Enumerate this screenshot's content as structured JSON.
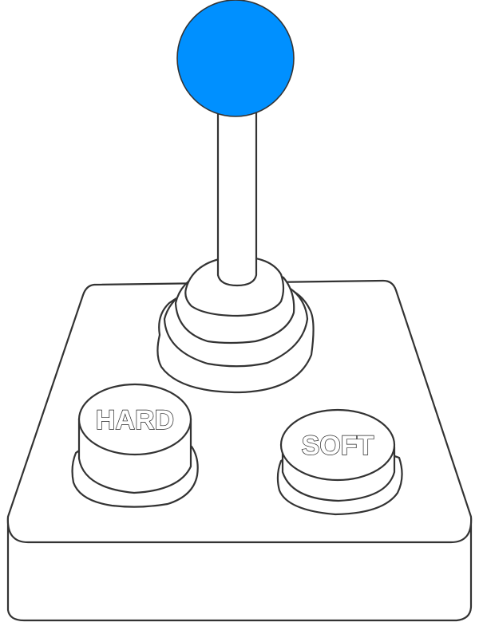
{
  "joystick": {
    "knob_color": "#0090FF",
    "outline_color": "#333333",
    "buttons": [
      {
        "label": "HARD"
      },
      {
        "label": "SOFT"
      }
    ]
  }
}
